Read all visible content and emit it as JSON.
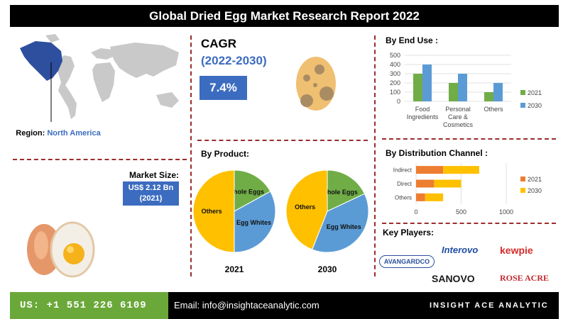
{
  "title": "Global Dried Egg Market Research Report 2022",
  "region": {
    "label": "Region:",
    "value": "North America"
  },
  "market_size": {
    "label": "Market Size:",
    "value": "US$ 2.12 Bn",
    "year": "(2021)"
  },
  "cagr": {
    "title": "CAGR",
    "period": "(2022-2030)",
    "value": "7.4%"
  },
  "sections": {
    "end_use": "By End Use :",
    "product": "By Product:",
    "distribution": "By Distribution Channel :",
    "key_players": "Key Players:"
  },
  "key_players": [
    "AVANGARDCO",
    "Interovo",
    "kewpie",
    "SANOVO",
    "ROSE ACRE"
  ],
  "footer": {
    "phone": "US: +1 551 226 6109",
    "email": "Email: info@insightaceanalytic.com",
    "brand": "INSIGHT ACE ANALYTIC"
  },
  "colors": {
    "blue": "#3c6cc0",
    "green": "#70ad47",
    "orange": "#ed7d31",
    "yellow": "#ffc000",
    "light_blue": "#5b9bd5"
  },
  "chart_data": [
    {
      "type": "bar",
      "title": "By End Use :",
      "categories": [
        "Food Ingredients",
        "Personal Care & Cosmetics",
        "Others"
      ],
      "series": [
        {
          "name": "2021",
          "values": [
            300,
            200,
            100
          ]
        },
        {
          "name": "2030",
          "values": [
            400,
            300,
            200
          ]
        }
      ],
      "ylim": [
        0,
        500
      ],
      "yticks": [
        "0",
        "100",
        "200",
        "300",
        "400",
        "500"
      ],
      "legend": "right"
    },
    {
      "type": "pie",
      "title": "By Product:",
      "label": "2021",
      "slices": [
        {
          "name": "Whole Eggs",
          "value": 17
        },
        {
          "name": "Egg Whites",
          "value": 33
        },
        {
          "name": "Others",
          "value": 50
        }
      ]
    },
    {
      "type": "pie",
      "label": "2030",
      "slices": [
        {
          "name": "Whole Eggs",
          "value": 18
        },
        {
          "name": "Egg Whites",
          "value": 38
        },
        {
          "name": "Others",
          "value": 44
        }
      ]
    },
    {
      "type": "bar",
      "orientation": "horizontal-stacked",
      "title": "By Distribution Channel :",
      "categories": [
        "Indirect",
        "Direct",
        "Others"
      ],
      "series": [
        {
          "name": "2021",
          "values": [
            300,
            200,
            100
          ]
        },
        {
          "name": "2030",
          "values": [
            400,
            300,
            200
          ]
        }
      ],
      "xlim": [
        0,
        1000
      ],
      "xticks": [
        "0",
        "500",
        "1000"
      ],
      "legend": "right"
    }
  ]
}
